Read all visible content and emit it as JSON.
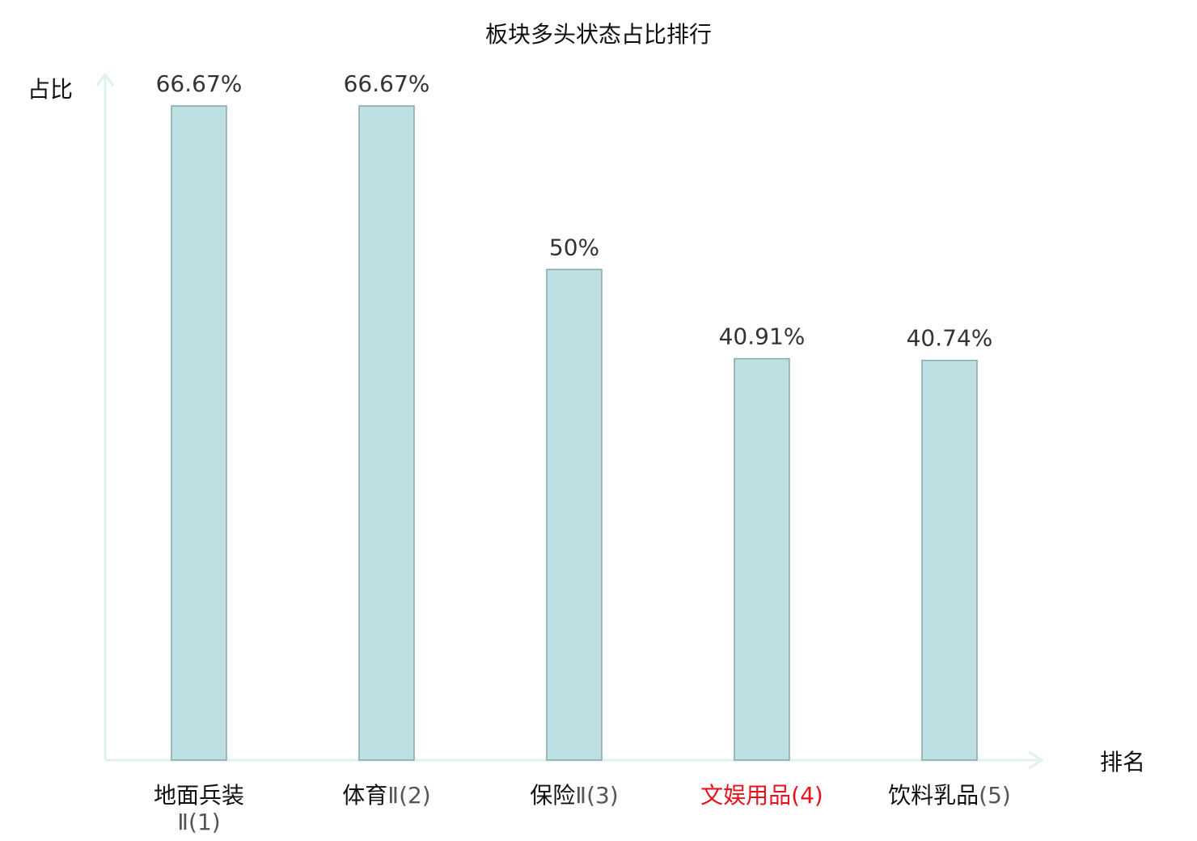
{
  "chart_data": {
    "type": "bar",
    "title": "板块多头状态占比排行",
    "ylabel": "占比",
    "xlabel": "排名",
    "categories": [
      {
        "name": "地面兵装",
        "suffix": "Ⅱ(1)",
        "highlight": false
      },
      {
        "name": "体育",
        "suffix": "Ⅱ(2)",
        "highlight": false
      },
      {
        "name": "保险",
        "suffix": "Ⅱ(3)",
        "highlight": false
      },
      {
        "name": "文娱用品",
        "suffix": "(4)",
        "highlight": true
      },
      {
        "name": "饮料乳品",
        "suffix": "(5)",
        "highlight": false
      }
    ],
    "values": [
      66.67,
      66.67,
      50,
      40.91,
      40.74
    ],
    "value_labels": [
      "66.67%",
      "66.67%",
      "50%",
      "40.91%",
      "40.74%"
    ],
    "ylim": [
      0,
      66.67
    ],
    "grid": false,
    "colors": {
      "bar_fill": "#bde1e3",
      "bar_stroke": "#86a6a8",
      "axis": "#dff2f0",
      "highlight": "#e8121e",
      "suffix": "#555555",
      "label": "#111111"
    }
  }
}
